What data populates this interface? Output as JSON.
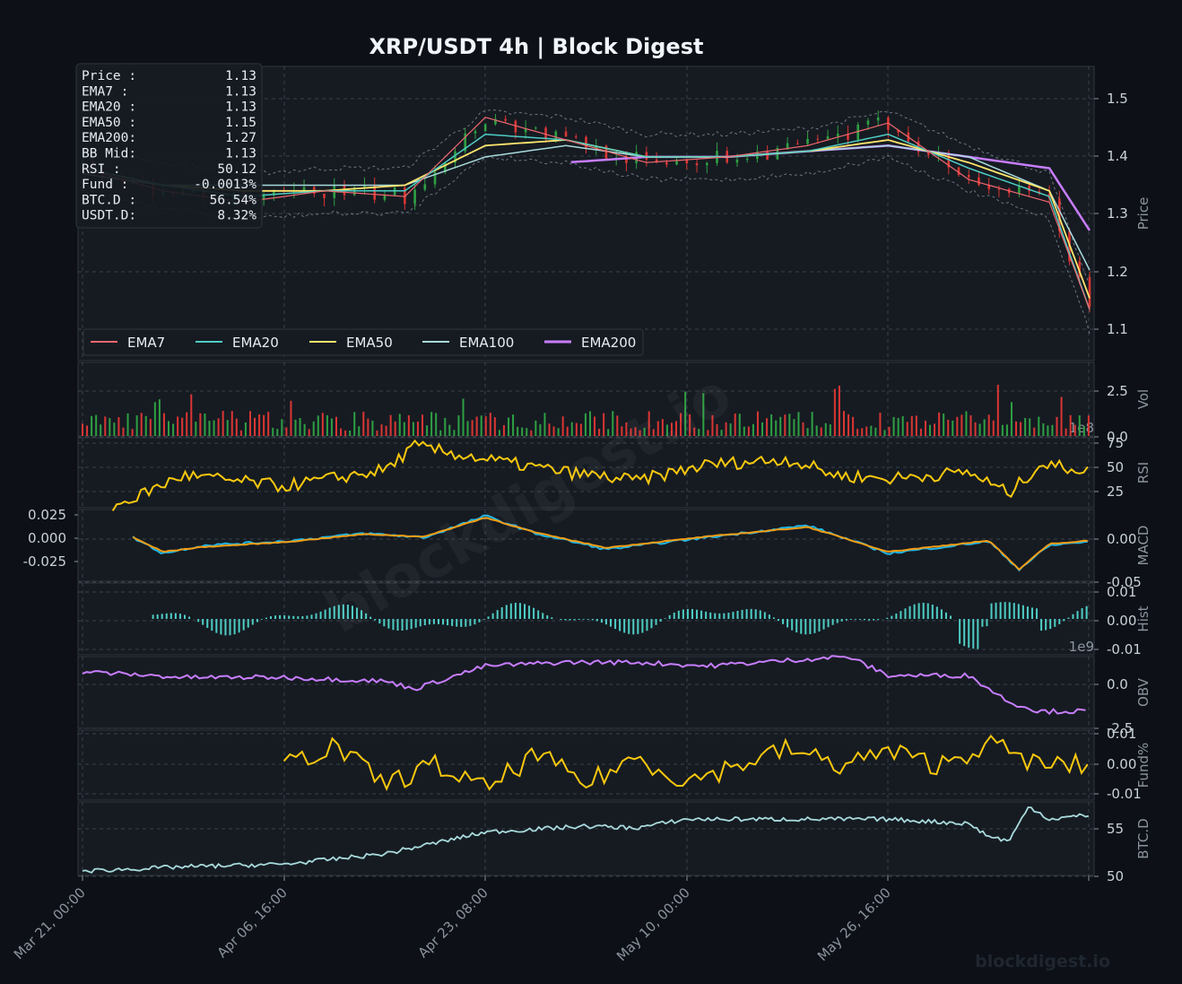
{
  "title": "XRP/USDT  4h  |  Block Digest",
  "watermark": "blockdigest.io",
  "footer_brand": "blockdigest.io",
  "colors": {
    "background": "#0d1117",
    "panel": "#161b22",
    "grid": "#30363d",
    "text": "#c9d1d9",
    "muted": "#8b949e",
    "ema7": "#f0686e",
    "ema20": "#4ecdc4",
    "ema50": "#ffe66d",
    "ema100": "#a8dadc",
    "ema200": "#c77dff",
    "rsi": "#f9c80e",
    "macd": "#1fb7e8",
    "signal": "#f39c12",
    "hist": "#4ecdc4",
    "obv": "#c77dff",
    "funding": "#f9c80e",
    "btcd": "#a8dadc",
    "candle_up": "#2ea043",
    "candle_down": "#da3633"
  },
  "info_box": [
    {
      "label": "Price :",
      "value": "1.13"
    },
    {
      "label": "EMA7  :",
      "value": "1.13"
    },
    {
      "label": "EMA20 :",
      "value": "1.13"
    },
    {
      "label": "EMA50 :",
      "value": "1.15"
    },
    {
      "label": "EMA200:",
      "value": "1.27"
    },
    {
      "label": "BB Mid:",
      "value": "1.13"
    },
    {
      "label": "RSI   :",
      "value": "50.12"
    },
    {
      "label": "Fund  :",
      "value": "-0.0013%"
    },
    {
      "label": "BTC.D :",
      "value": "56.54%"
    },
    {
      "label": "USDT.D:",
      "value": "8.32%"
    }
  ],
  "legend": [
    "EMA7",
    "EMA20",
    "EMA50",
    "EMA100",
    "EMA200"
  ],
  "x_ticks": [
    "Mar 21, 00:00",
    "Apr 06, 16:00",
    "Apr 23, 08:00",
    "May 10, 00:00",
    "May 26, 16:00"
  ],
  "chart_data": [
    {
      "type": "line",
      "ylabel": "Price",
      "ylim": [
        1.04,
        1.56
      ],
      "yticks": [
        "1.1",
        "1.2",
        "1.3",
        "1.4",
        "1.5"
      ],
      "x": [
        0,
        8,
        16,
        24,
        32,
        40,
        48,
        56,
        64,
        72,
        80,
        88,
        96,
        100
      ],
      "series": [
        {
          "name": "EMA7",
          "values": [
            1.38,
            1.34,
            1.32,
            1.34,
            1.33,
            1.47,
            1.43,
            1.39,
            1.4,
            1.42,
            1.46,
            1.36,
            1.32,
            1.13
          ]
        },
        {
          "name": "EMA20",
          "values": [
            1.38,
            1.35,
            1.33,
            1.34,
            1.34,
            1.44,
            1.43,
            1.4,
            1.4,
            1.41,
            1.44,
            1.38,
            1.33,
            1.13
          ]
        },
        {
          "name": "EMA50",
          "values": [
            1.38,
            1.35,
            1.34,
            1.34,
            1.35,
            1.42,
            1.43,
            1.4,
            1.4,
            1.41,
            1.43,
            1.39,
            1.34,
            1.15
          ]
        },
        {
          "name": "EMA100",
          "values": [
            1.37,
            1.35,
            1.35,
            1.35,
            1.35,
            1.4,
            1.42,
            1.4,
            1.4,
            1.41,
            1.42,
            1.4,
            1.34,
            1.2
          ]
        },
        {
          "name": "EMA200",
          "values": [
            null,
            null,
            null,
            null,
            null,
            null,
            1.39,
            1.4,
            1.4,
            1.41,
            1.42,
            1.4,
            1.38,
            1.27
          ]
        }
      ]
    },
    {
      "type": "bar",
      "ylabel": "Vol",
      "yticks": [
        "0.0",
        "2.5"
      ],
      "offset_label": "1e8"
    },
    {
      "type": "line",
      "ylabel": "RSI",
      "ylim": [
        15,
        80
      ],
      "yticks": [
        "25",
        "50",
        "75"
      ],
      "x": [
        3,
        10,
        20,
        30,
        33,
        40,
        48,
        55,
        62,
        70,
        75,
        80,
        88,
        92,
        95,
        100
      ],
      "values": [
        15,
        45,
        35,
        50,
        72,
        60,
        48,
        40,
        55,
        60,
        45,
        42,
        48,
        28,
        55,
        50
      ]
    },
    {
      "type": "line",
      "ylabel": "MACD",
      "ylim": [
        -0.055,
        0.035
      ],
      "yticks": [
        "-0.05",
        "0.00"
      ],
      "left_yticks": [
        "-0.025",
        "0.000",
        "0.025"
      ],
      "x": [
        5,
        8,
        12,
        20,
        28,
        34,
        40,
        45,
        52,
        62,
        72,
        80,
        90,
        93,
        96,
        100
      ],
      "series": [
        {
          "name": "MACD",
          "values": [
            0,
            -0.02,
            -0.01,
            -0.005,
            0.005,
            0.0,
            0.027,
            0.005,
            -0.015,
            0.0,
            0.015,
            -0.02,
            -0.005,
            -0.04,
            -0.01,
            -0.005
          ]
        },
        {
          "name": "Signal",
          "values": [
            0,
            -0.018,
            -0.012,
            -0.006,
            0.004,
            0.001,
            0.025,
            0.006,
            -0.013,
            0.001,
            0.013,
            -0.018,
            -0.004,
            -0.04,
            -0.008,
            -0.004
          ]
        }
      ]
    },
    {
      "type": "bar",
      "ylabel": "Hist",
      "ylim": [
        -0.013,
        0.013
      ],
      "yticks": [
        "-0.01",
        "0.00",
        "0.01"
      ],
      "offset_label": "1e9"
    },
    {
      "type": "line",
      "ylabel": "OBV",
      "ylim": [
        -3.0,
        0.8
      ],
      "yticks": [
        "-2.5",
        "0.0"
      ],
      "x": [
        0,
        10,
        20,
        30,
        33,
        40,
        48,
        55,
        62,
        70,
        76,
        80,
        88,
        92,
        95,
        100
      ],
      "values": [
        0,
        -0.3,
        -0.3,
        -0.5,
        -0.9,
        0.3,
        0.5,
        0.5,
        0.3,
        0.6,
        0.8,
        -0.2,
        -0.2,
        -1.6,
        -2.1,
        -2.1
      ]
    },
    {
      "type": "line",
      "ylabel": "Fund%",
      "ylim": [
        -0.013,
        0.013
      ],
      "yticks": [
        "-0.01",
        "0.00",
        "0.01"
      ],
      "x": [
        20,
        25,
        30,
        35,
        40,
        45,
        50,
        55,
        60,
        65,
        70,
        75,
        80,
        85,
        90,
        95,
        100
      ],
      "values": [
        0.0,
        0.007,
        -0.007,
        0.0,
        -0.009,
        0.004,
        -0.007,
        0.003,
        -0.006,
        0.0,
        0.006,
        0.0,
        0.005,
        0.0,
        0.008,
        0.0,
        0.0
      ]
    },
    {
      "type": "line",
      "ylabel": "BTC.D",
      "ylim": [
        49.5,
        58
      ],
      "yticks": [
        "50",
        "55"
      ],
      "x": [
        0,
        10,
        20,
        30,
        40,
        50,
        55,
        60,
        70,
        80,
        88,
        90,
        92,
        94,
        96,
        100
      ],
      "values": [
        50.0,
        50.5,
        50.8,
        52.0,
        54.5,
        55.2,
        55.0,
        56.0,
        56.0,
        56.0,
        55.5,
        54.0,
        53.5,
        57.5,
        56.0,
        56.5
      ]
    }
  ]
}
